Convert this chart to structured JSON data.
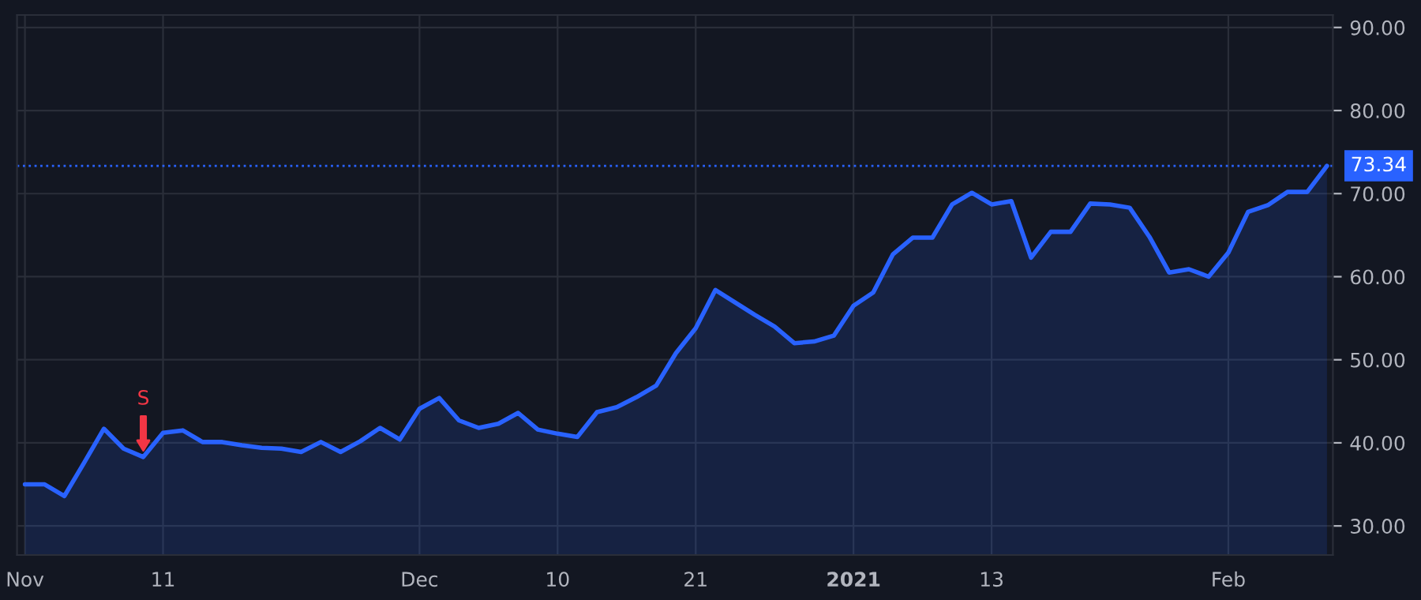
{
  "chart_data": {
    "type": "area",
    "categories": [
      "Nov",
      null,
      null,
      null,
      null,
      null,
      null,
      "11",
      null,
      null,
      null,
      null,
      null,
      null,
      null,
      null,
      null,
      null,
      null,
      null,
      "Dec",
      null,
      null,
      null,
      null,
      null,
      null,
      "10",
      null,
      null,
      null,
      null,
      null,
      null,
      "21",
      null,
      null,
      null,
      null,
      null,
      null,
      null,
      "2021",
      null,
      null,
      null,
      null,
      null,
      null,
      "13",
      null,
      null,
      null,
      null,
      null,
      null,
      null,
      null,
      null,
      null,
      null,
      "Feb",
      null,
      null,
      null,
      null,
      null
    ],
    "series": [
      {
        "color": "#2962ff",
        "values": [
          35.0,
          35.0,
          33.6,
          37.6,
          41.7,
          39.3,
          38.3,
          41.2,
          41.5,
          40.1,
          40.1,
          39.7,
          39.4,
          39.3,
          38.9,
          40.1,
          38.9,
          40.2,
          41.8,
          40.4,
          44.1,
          45.4,
          42.7,
          41.8,
          42.3,
          43.6,
          41.6,
          41.1,
          40.7,
          43.7,
          44.3,
          45.5,
          46.9,
          50.8,
          53.8,
          58.4,
          56.9,
          55.4,
          54.0,
          52.0,
          52.2,
          52.9,
          56.5,
          58.1,
          62.7,
          64.7,
          64.7,
          68.7,
          70.1,
          68.7,
          69.1,
          62.3,
          65.4,
          65.4,
          68.8,
          68.7,
          68.3,
          64.8,
          60.5,
          60.9,
          60.0,
          62.9,
          67.8,
          68.6,
          70.2,
          70.2,
          73.34
        ]
      }
    ],
    "ylim": [
      26.5,
      91.5
    ],
    "yticks": [
      {
        "value": 30,
        "label": "30.00"
      },
      {
        "value": 40,
        "label": "40.00"
      },
      {
        "value": 50,
        "label": "50.00"
      },
      {
        "value": 60,
        "label": "60.00"
      },
      {
        "value": 70,
        "label": "70.00"
      },
      {
        "value": 80,
        "label": "80.00"
      },
      {
        "value": 90,
        "label": "90.00"
      }
    ],
    "ref_lines": [
      {
        "axis": "y",
        "value": 73.34,
        "label": "73.34",
        "color": "#2962ff",
        "line_style": "dotted"
      }
    ],
    "annotations": [
      {
        "text": "S",
        "y": 38.3
      }
    ],
    "grid": true,
    "line_style": "solid",
    "marker": "none"
  }
}
